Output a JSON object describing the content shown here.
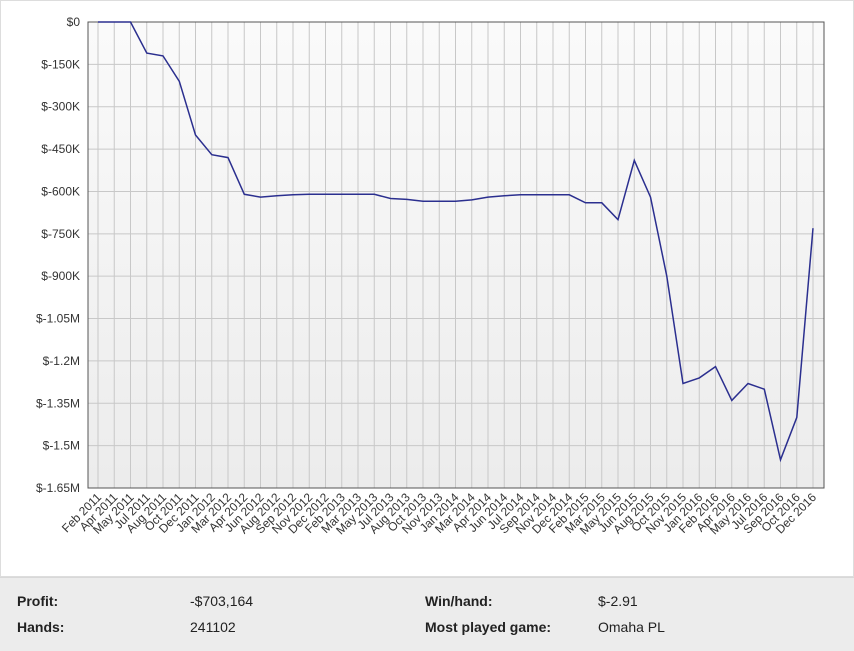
{
  "chart_data": {
    "type": "line",
    "categories": [
      "Feb 2011",
      "Apr 2011",
      "May 2011",
      "Jul 2011",
      "Aug 2011",
      "Oct 2011",
      "Dec 2011",
      "Jan 2012",
      "Mar 2012",
      "Apr 2012",
      "Jun 2012",
      "Aug 2012",
      "Sep 2012",
      "Nov 2012",
      "Dec 2012",
      "Feb 2013",
      "Mar 2013",
      "May 2013",
      "Jul 2013",
      "Aug 2013",
      "Oct 2013",
      "Nov 2013",
      "Jan 2014",
      "Mar 2014",
      "Apr 2014",
      "Jun 2014",
      "Jul 2014",
      "Sep 2014",
      "Nov 2014",
      "Dec 2014",
      "Feb 2015",
      "Mar 2015",
      "May 2015",
      "Jun 2015",
      "Aug 2015",
      "Oct 2015",
      "Nov 2015",
      "Jan 2016",
      "Feb 2016",
      "Apr 2016",
      "May 2016",
      "Jul 2016",
      "Sep 2016",
      "Oct 2016",
      "Dec 2016"
    ],
    "series": [
      {
        "color": "#2b2f8f",
        "values": [
          0,
          0,
          0,
          -110000,
          -120000,
          -210000,
          -400000,
          -470000,
          -480000,
          -610000,
          -620000,
          -615000,
          -612000,
          -610000,
          -610000,
          -610000,
          -610000,
          -610000,
          -625000,
          -628000,
          -635000,
          -635000,
          -635000,
          -630000,
          -620000,
          -615000,
          -612000,
          -612000,
          -612000,
          -612000,
          -640000,
          -640000,
          -700000,
          -490000,
          -620000,
          -900000,
          -1280000,
          -1260000,
          -1220000,
          -1340000,
          -1280000,
          -1300000,
          -1550000,
          -1400000,
          -730000
        ]
      }
    ],
    "ylim": [
      -1650000,
      0
    ],
    "yticks": [
      {
        "value": 0,
        "label": "$0"
      },
      {
        "value": -150000,
        "label": "$-150K"
      },
      {
        "value": -300000,
        "label": "$-300K"
      },
      {
        "value": -450000,
        "label": "$-450K"
      },
      {
        "value": -600000,
        "label": "$-600K"
      },
      {
        "value": -750000,
        "label": "$-750K"
      },
      {
        "value": -900000,
        "label": "$-900K"
      },
      {
        "value": -1050000,
        "label": "$-1.05M"
      },
      {
        "value": -1200000,
        "label": "$-1.2M"
      },
      {
        "value": -1350000,
        "label": "$-1.35M"
      },
      {
        "value": -1500000,
        "label": "$-1.5M"
      },
      {
        "value": -1650000,
        "label": "$-1.65M"
      }
    ],
    "grid": true
  },
  "stats": {
    "rows": [
      [
        "Profit:",
        "-$703,164",
        "Win/hand:",
        "$-2.91"
      ],
      [
        "Hands:",
        "241102",
        "Most played game:",
        "Omaha PL"
      ]
    ]
  }
}
